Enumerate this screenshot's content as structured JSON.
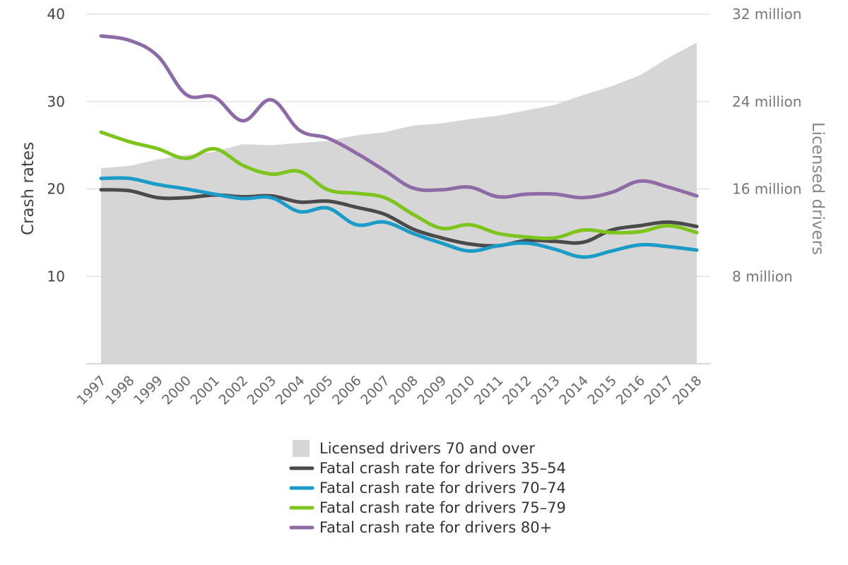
{
  "chart_data": {
    "type": "line",
    "title": "",
    "xlabel": "",
    "ylabel": "Crash rates",
    "y2label": "Licensed drivers",
    "x": [
      "1997",
      "1998",
      "1999",
      "2000",
      "2001",
      "2002",
      "2003",
      "2004",
      "2005",
      "2006",
      "2007",
      "2008",
      "2009",
      "2010",
      "2011",
      "2012",
      "2013",
      "2014",
      "2015",
      "2016",
      "2017",
      "2018"
    ],
    "ylim": [
      0,
      40
    ],
    "yticks": [
      10,
      20,
      30,
      40
    ],
    "y2lim": [
      0,
      32
    ],
    "y2ticks": [
      {
        "value": 8,
        "label": "8 million"
      },
      {
        "value": 16,
        "label": "16 million"
      },
      {
        "value": 24,
        "label": "24 million"
      },
      {
        "value": 32,
        "label": "32 million"
      }
    ],
    "grid": true,
    "area_series": {
      "name": "Licensed drivers 70 and over",
      "axis": "right",
      "unit": "million",
      "color": "#d6d6d6",
      "values": [
        17.9,
        18.1,
        18.7,
        19.1,
        19.4,
        20.1,
        20.0,
        20.2,
        20.4,
        20.9,
        21.2,
        21.8,
        22.0,
        22.4,
        22.7,
        23.2,
        23.7,
        24.6,
        25.4,
        26.4,
        28.0,
        29.4
      ]
    },
    "series": [
      {
        "name": "Fatal crash rate for drivers 35–54",
        "color": "#4a4a4a",
        "values": [
          19.9,
          19.8,
          19.0,
          19.0,
          19.3,
          19.1,
          19.2,
          18.5,
          18.6,
          17.9,
          17.1,
          15.4,
          14.4,
          13.7,
          13.5,
          14.1,
          14.0,
          13.9,
          15.3,
          15.8,
          16.2,
          15.7
        ]
      },
      {
        "name": "Fatal crash rate for drivers 70–74",
        "color": "#1a9bc8",
        "values": [
          21.2,
          21.2,
          20.5,
          20.0,
          19.4,
          18.9,
          19.0,
          17.4,
          17.8,
          15.9,
          16.2,
          14.9,
          13.8,
          12.9,
          13.5,
          13.8,
          13.1,
          12.2,
          12.9,
          13.6,
          13.4,
          13.0
        ]
      },
      {
        "name": "Fatal crash rate for drivers 75–79",
        "color": "#7dc41c",
        "values": [
          26.5,
          25.4,
          24.6,
          23.5,
          24.6,
          22.7,
          21.7,
          22.0,
          19.9,
          19.5,
          19.0,
          17.1,
          15.5,
          15.9,
          14.9,
          14.5,
          14.4,
          15.3,
          15.0,
          15.1,
          15.8,
          15.0
        ]
      },
      {
        "name": "Fatal crash rate for drivers 80+",
        "color": "#8e6aa6",
        "values": [
          37.5,
          37.0,
          35.2,
          30.8,
          30.5,
          27.8,
          30.2,
          26.7,
          25.8,
          24.1,
          22.1,
          20.1,
          19.9,
          20.2,
          19.1,
          19.4,
          19.4,
          19.0,
          19.6,
          20.9,
          20.2,
          19.2
        ]
      }
    ],
    "legend": {
      "position": "bottom",
      "entries": [
        {
          "label": "Licensed drivers 70 and over",
          "color": "#d6d6d6",
          "shape": "square"
        },
        {
          "label": "Fatal crash rate for drivers 35–54",
          "color": "#4a4a4a",
          "shape": "line"
        },
        {
          "label": "Fatal crash rate for drivers 70–74",
          "color": "#1a9bc8",
          "shape": "line"
        },
        {
          "label": "Fatal crash rate for drivers 75–79",
          "color": "#7dc41c",
          "shape": "line"
        },
        {
          "label": "Fatal crash rate for drivers 80+",
          "color": "#8e6aa6",
          "shape": "line"
        }
      ]
    }
  }
}
